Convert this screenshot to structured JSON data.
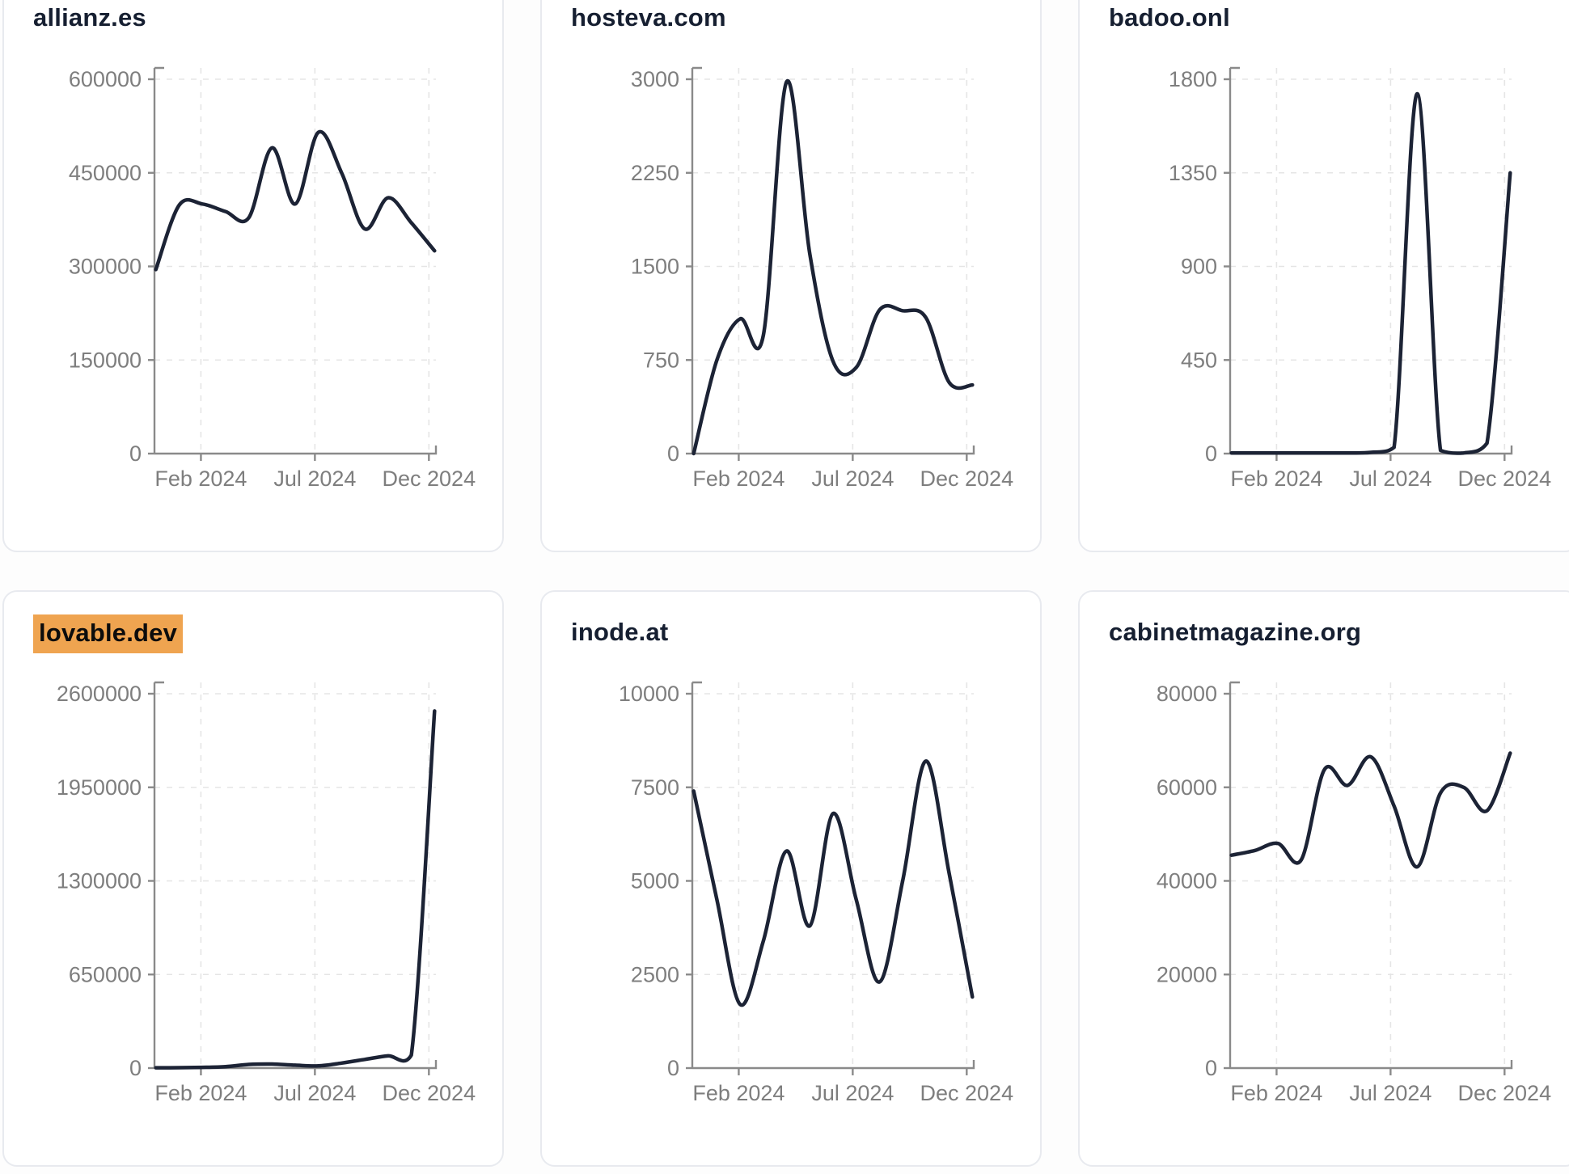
{
  "style": {
    "line_color": "#1c2335",
    "axis_color": "#8a8a8a",
    "tick_label_color": "#7e7e7e",
    "grid_color": "#e5e5e5",
    "card_border_color": "#e8eaef",
    "title_color": "#161f31",
    "highlight_bg": "#efa450",
    "page_bg": "#fdfdfd",
    "card_bg": "#ffffff"
  },
  "chart_data": [
    {
      "type": "line",
      "title": "allianz.es",
      "title_highlighted": false,
      "x_start": "Jan 2024",
      "x_end": "Dec 2024",
      "x_tick_labels": [
        "Feb 2024",
        "Jul 2024",
        "Dec 2024"
      ],
      "y_ticks": [
        0,
        150000,
        300000,
        450000,
        600000
      ],
      "ylim": [
        0,
        600000
      ],
      "values": [
        295000,
        398000,
        400000,
        388000,
        378000,
        490000,
        400000,
        515000,
        450000,
        360000,
        410000,
        370000,
        325000
      ]
    },
    {
      "type": "line",
      "title": "hosteva.com",
      "title_highlighted": false,
      "x_start": "Jan 2024",
      "x_end": "Dec 2024",
      "x_tick_labels": [
        "Feb 2024",
        "Jul 2024",
        "Dec 2024"
      ],
      "y_ticks": [
        0,
        750,
        1500,
        2250,
        3000
      ],
      "ylim": [
        0,
        3000
      ],
      "values": [
        0,
        750,
        1080,
        950,
        2980,
        1600,
        740,
        690,
        1150,
        1145,
        1090,
        570,
        550
      ]
    },
    {
      "type": "line",
      "title": "badoo.onl",
      "title_highlighted": false,
      "x_start": "Jan 2024",
      "x_end": "Dec 2024",
      "x_tick_labels": [
        "Feb 2024",
        "Jul 2024",
        "Dec 2024"
      ],
      "y_ticks": [
        0,
        450,
        900,
        1350,
        1800
      ],
      "ylim": [
        0,
        1800
      ],
      "values": [
        3,
        3,
        3,
        3,
        3,
        3,
        6,
        30,
        1730,
        15,
        3,
        50,
        1350
      ]
    },
    {
      "type": "line",
      "title": "lovable.dev",
      "title_highlighted": true,
      "x_start": "Jan 2024",
      "x_end": "Dec 2024",
      "x_tick_labels": [
        "Feb 2024",
        "Jul 2024",
        "Dec 2024"
      ],
      "y_ticks": [
        0,
        650000,
        1300000,
        1950000,
        2600000
      ],
      "ylim": [
        0,
        2600000
      ],
      "values": [
        2000,
        3000,
        5000,
        10000,
        25000,
        28000,
        20000,
        15000,
        35000,
        60000,
        85000,
        90000,
        2480000
      ]
    },
    {
      "type": "line",
      "title": "inode.at",
      "title_highlighted": false,
      "x_start": "Jan 2024",
      "x_end": "Dec 2024",
      "x_tick_labels": [
        "Feb 2024",
        "Jul 2024",
        "Dec 2024"
      ],
      "y_ticks": [
        0,
        2500,
        5000,
        7500,
        10000
      ],
      "ylim": [
        0,
        10000
      ],
      "values": [
        7400,
        4500,
        1700,
        3400,
        5800,
        3800,
        6800,
        4500,
        2300,
        5000,
        8200,
        5200,
        1900
      ]
    },
    {
      "type": "line",
      "title": "cabinetmagazine.org",
      "title_highlighted": false,
      "x_start": "Jan 2024",
      "x_end": "Dec 2024",
      "x_tick_labels": [
        "Feb 2024",
        "Jul 2024",
        "Dec 2024"
      ],
      "y_ticks": [
        0,
        20000,
        40000,
        60000,
        80000
      ],
      "ylim": [
        0,
        80000
      ],
      "values": [
        45500,
        46500,
        48000,
        44500,
        63800,
        60400,
        66500,
        56000,
        43000,
        58800,
        60000,
        55000,
        67300
      ]
    }
  ]
}
